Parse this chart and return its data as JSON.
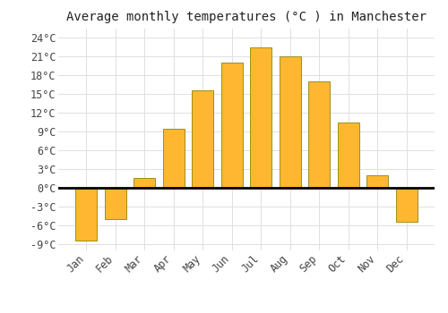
{
  "title": "Average monthly temperatures (°C ) in Manchester",
  "months": [
    "Jan",
    "Feb",
    "Mar",
    "Apr",
    "May",
    "Jun",
    "Jul",
    "Aug",
    "Sep",
    "Oct",
    "Nov",
    "Dec"
  ],
  "values": [
    -8.5,
    -5.0,
    1.5,
    9.5,
    15.5,
    20.0,
    22.5,
    21.0,
    17.0,
    10.5,
    2.0,
    -5.5
  ],
  "bar_color_top": "#FFB732",
  "bar_color_bottom": "#FFA000",
  "bar_edge_color": "#888800",
  "background_color": "#ffffff",
  "ylim": [
    -10,
    25.5
  ],
  "yticks": [
    -9,
    -6,
    -3,
    0,
    3,
    6,
    9,
    12,
    15,
    18,
    21,
    24
  ],
  "ytick_labels": [
    "-9°C",
    "-6°C",
    "-3°C",
    "0°C",
    "3°C",
    "6°C",
    "9°C",
    "12°C",
    "15°C",
    "18°C",
    "21°C",
    "24°C"
  ],
  "title_fontsize": 10,
  "tick_fontsize": 8.5,
  "grid_color": "#e0e0e0",
  "bar_width": 0.75
}
